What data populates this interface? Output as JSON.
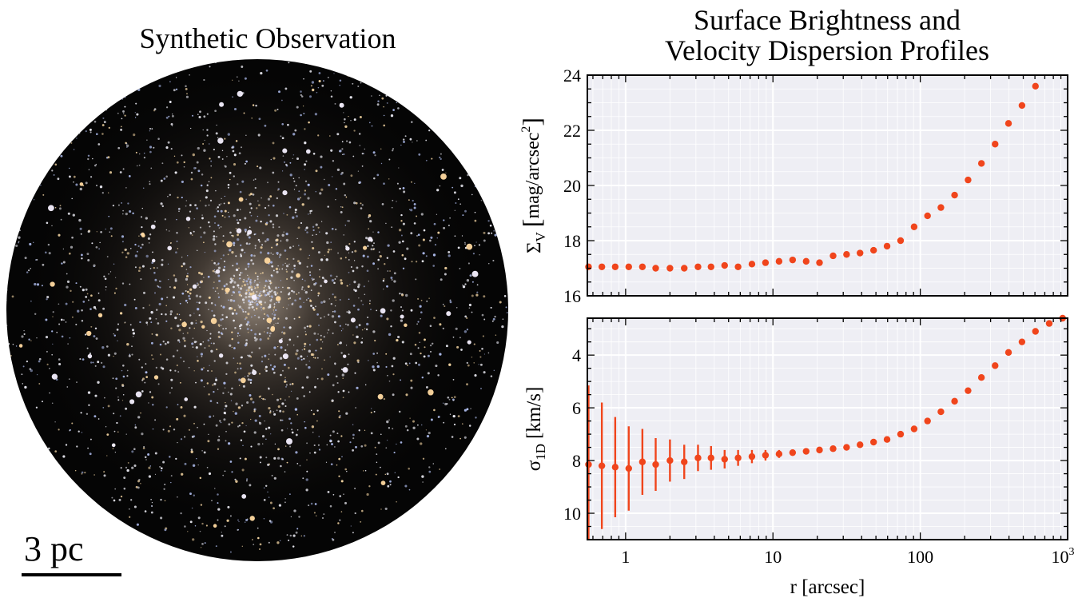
{
  "left_panel": {
    "title": "Synthetic Observation",
    "scalebar_label": "3 pc"
  },
  "right_title_line1": "Surface Brightness and",
  "right_title_line2": "Velocity Dispersion Profiles",
  "colors": {
    "marker": "#f0451c",
    "plot_bg": "#eeeef4",
    "grid": "#ffffff"
  },
  "chart_data": [
    {
      "type": "scatter",
      "name": "surface-brightness",
      "ylabel_symbol": "Σ",
      "ylabel_sub": "V",
      "ylabel_unit": "mag/arcsec",
      "ylabel_sup": "2",
      "xscale": "log",
      "xlim": [
        0.55,
        1000
      ],
      "ylim": [
        24,
        16
      ],
      "yticks": [
        "16",
        "18",
        "20",
        "22",
        "24"
      ],
      "grid": true,
      "x": [
        0.56,
        0.69,
        0.85,
        1.05,
        1.3,
        1.6,
        2.0,
        2.5,
        3.1,
        3.8,
        4.7,
        5.8,
        7.2,
        8.9,
        11,
        13.6,
        16.8,
        20.7,
        25.6,
        31.6,
        39,
        48.2,
        59.5,
        73.5,
        90.8,
        112,
        138,
        171,
        211,
        260,
        322,
        397,
        490,
        605
      ],
      "y": [
        17.05,
        17.05,
        17.05,
        17.05,
        17.05,
        17.0,
        17.0,
        17.0,
        17.05,
        17.05,
        17.1,
        17.05,
        17.15,
        17.2,
        17.25,
        17.3,
        17.25,
        17.2,
        17.45,
        17.5,
        17.55,
        17.65,
        17.8,
        18.0,
        18.5,
        18.9,
        19.2,
        19.65,
        20.2,
        20.8,
        21.5,
        22.25,
        22.9,
        23.6
      ]
    },
    {
      "type": "scatter",
      "name": "velocity-dispersion",
      "ylabel_symbol": "σ",
      "ylabel_sub": "1D",
      "ylabel_unit": "[km/s]",
      "xlabel": "r [arcsec]",
      "xscale": "log",
      "xlim": [
        0.55,
        1000
      ],
      "ylim": [
        2.6,
        11.0
      ],
      "yticks": [
        "4",
        "6",
        "8",
        "10"
      ],
      "xticks": [
        "1",
        "10",
        "100",
        "10³"
      ],
      "grid": true,
      "x": [
        0.56,
        0.69,
        0.85,
        1.05,
        1.3,
        1.6,
        2.0,
        2.5,
        3.1,
        3.8,
        4.7,
        5.8,
        7.2,
        8.9,
        11,
        13.6,
        16.8,
        20.7,
        25.6,
        31.6,
        39,
        48.2,
        59.5,
        73.5,
        90.8,
        112,
        138,
        171,
        211,
        260,
        322,
        397,
        490,
        605,
        750,
        925
      ],
      "y": [
        8.15,
        8.2,
        8.25,
        8.3,
        8.05,
        8.15,
        8.0,
        8.05,
        7.9,
        7.9,
        7.95,
        7.9,
        7.85,
        7.8,
        7.75,
        7.7,
        7.65,
        7.6,
        7.55,
        7.5,
        7.4,
        7.3,
        7.2,
        7.0,
        6.8,
        6.5,
        6.15,
        5.75,
        5.35,
        4.85,
        4.4,
        3.9,
        3.5,
        3.1,
        2.8,
        2.6
      ],
      "yerr": [
        3.0,
        2.4,
        1.9,
        1.6,
        1.25,
        1.0,
        0.8,
        0.65,
        0.5,
        0.45,
        0.35,
        0.3,
        0.25,
        0.2,
        0.15,
        0.12,
        0.1,
        0.08,
        0.07,
        0.06,
        0.05,
        0.05,
        0.05,
        0.05,
        0.05,
        0.05,
        0.05,
        0.05,
        0.05,
        0.05,
        0.05,
        0.05,
        0.05,
        0.05,
        0.05,
        0.05
      ]
    }
  ]
}
